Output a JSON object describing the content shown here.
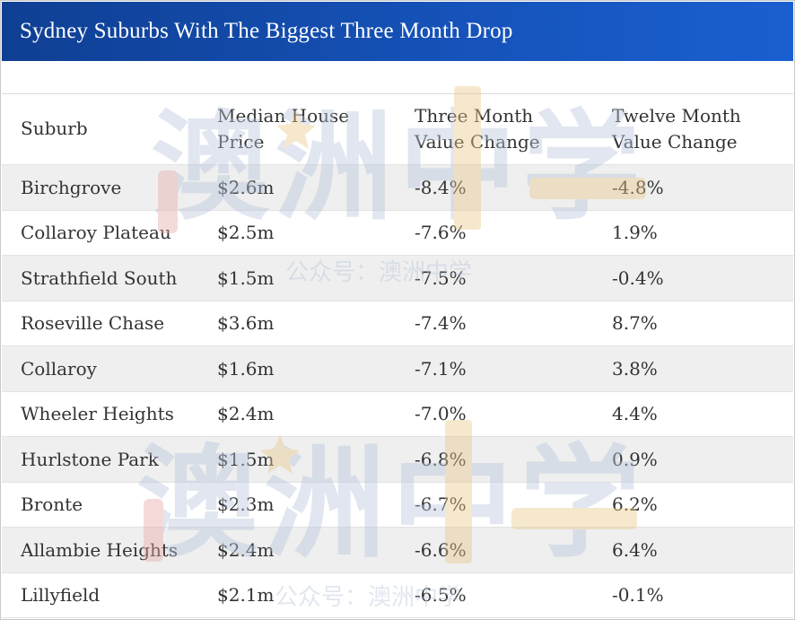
{
  "title": "Sydney Suburbs With The Biggest Three Month Drop",
  "columns": {
    "suburb": "Suburb",
    "median_line1": "Median House",
    "median_line2": "Price",
    "three_line1": "Three Month",
    "three_line2": "Value Change",
    "twelve_line1": "Twelve Month",
    "twelve_line2": "Value Change"
  },
  "rows": [
    {
      "suburb": "Birchgrove",
      "price": "$2.6m",
      "three": "-8.4%",
      "twelve": "-4.8%"
    },
    {
      "suburb": "Collaroy Plateau",
      "price": "$2.5m",
      "three": "-7.6%",
      "twelve": "1.9%"
    },
    {
      "suburb": "Strathfield South",
      "price": "$1.5m",
      "three": "-7.5%",
      "twelve": "-0.4%"
    },
    {
      "suburb": "Roseville Chase",
      "price": "$3.6m",
      "three": "-7.4%",
      "twelve": "8.7%"
    },
    {
      "suburb": "Collaroy",
      "price": "$1.6m",
      "three": "-7.1%",
      "twelve": "3.8%"
    },
    {
      "suburb": "Wheeler Heights",
      "price": "$2.4m",
      "three": "-7.0%",
      "twelve": "4.4%"
    },
    {
      "suburb": "Hurlstone Park",
      "price": "$1.5m",
      "three": "-6.8%",
      "twelve": "0.9%"
    },
    {
      "suburb": "Bronte",
      "price": "$2.3m",
      "three": "-6.7%",
      "twelve": "6.2%"
    },
    {
      "suburb": "Allambie Heights",
      "price": "$2.4m",
      "three": "-6.6%",
      "twelve": "6.4%"
    },
    {
      "suburb": "Lillyfield",
      "price": "$2.1m",
      "three": "-6.5%",
      "twelve": "-0.1%"
    }
  ],
  "watermark": {
    "logo_text": "澳洲中学",
    "caption": "公众号：澳洲中学",
    "color": "#b8c6dc"
  },
  "colors": {
    "header_bg": "#1552b8",
    "header_text": "#ffffff",
    "row_alt": "#efefef",
    "text": "#333333"
  }
}
